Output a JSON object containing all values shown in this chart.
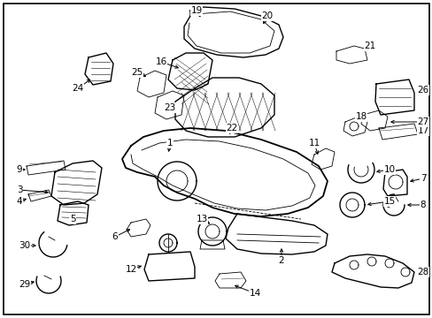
{
  "background_color": "#ffffff",
  "border_color": "#000000",
  "line_color": "#000000",
  "figsize": [
    4.89,
    3.6
  ],
  "dpi": 100
}
